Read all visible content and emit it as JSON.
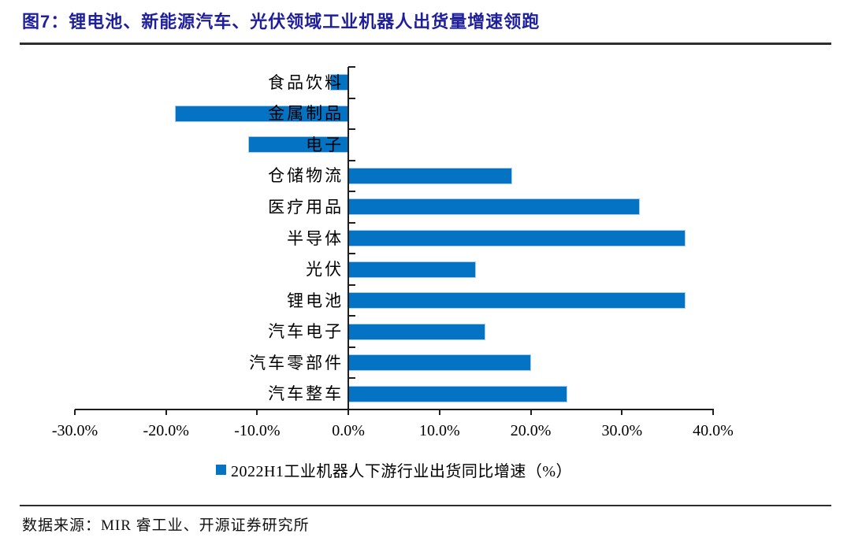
{
  "figure": {
    "title": "图7：锂电池、新能源汽车、光伏领域工业机器人出货量增速领跑"
  },
  "chart_data": {
    "type": "bar",
    "orientation": "horizontal",
    "title": "图7：锂电池、新能源汽车、光伏领域工业机器人出货量增速领跑",
    "categories": [
      "食品饮料",
      "金属制品",
      "电子",
      "仓储物流",
      "医疗用品",
      "半导体",
      "光伏",
      "锂电池",
      "汽车电子",
      "汽车零部件",
      "汽车整车"
    ],
    "series": [
      {
        "name": "2022H1工业机器人下游行业出货同比增速（%）",
        "values": [
          -2,
          -19,
          -11,
          18,
          32,
          37,
          14,
          37,
          15,
          20,
          24
        ]
      }
    ],
    "x_axis": {
      "ticks": [
        "-30.0%",
        "-20.0%",
        "-10.0%",
        "0.0%",
        "10.0%",
        "20.0%",
        "30.0%",
        "40.0%"
      ],
      "tick_values": [
        -30,
        -20,
        -10,
        0,
        10,
        20,
        30,
        40
      ],
      "range": [
        -30,
        40
      ],
      "unit": "%"
    },
    "ylabel": "",
    "xlabel": "",
    "grid": false,
    "legend_position": "bottom"
  },
  "legend": {
    "label": "2022H1工业机器人下游行业出货同比增速（%）"
  },
  "footer": {
    "source": "数据来源：MIR 睿工业、开源证券研究所"
  },
  "colors": {
    "title": "#1F1F9C",
    "bar": "#0473C4",
    "bar_border": "#A9CEEC",
    "axis": "#1f1f1f",
    "rule": "#2d2d2d",
    "text": "#000000"
  }
}
